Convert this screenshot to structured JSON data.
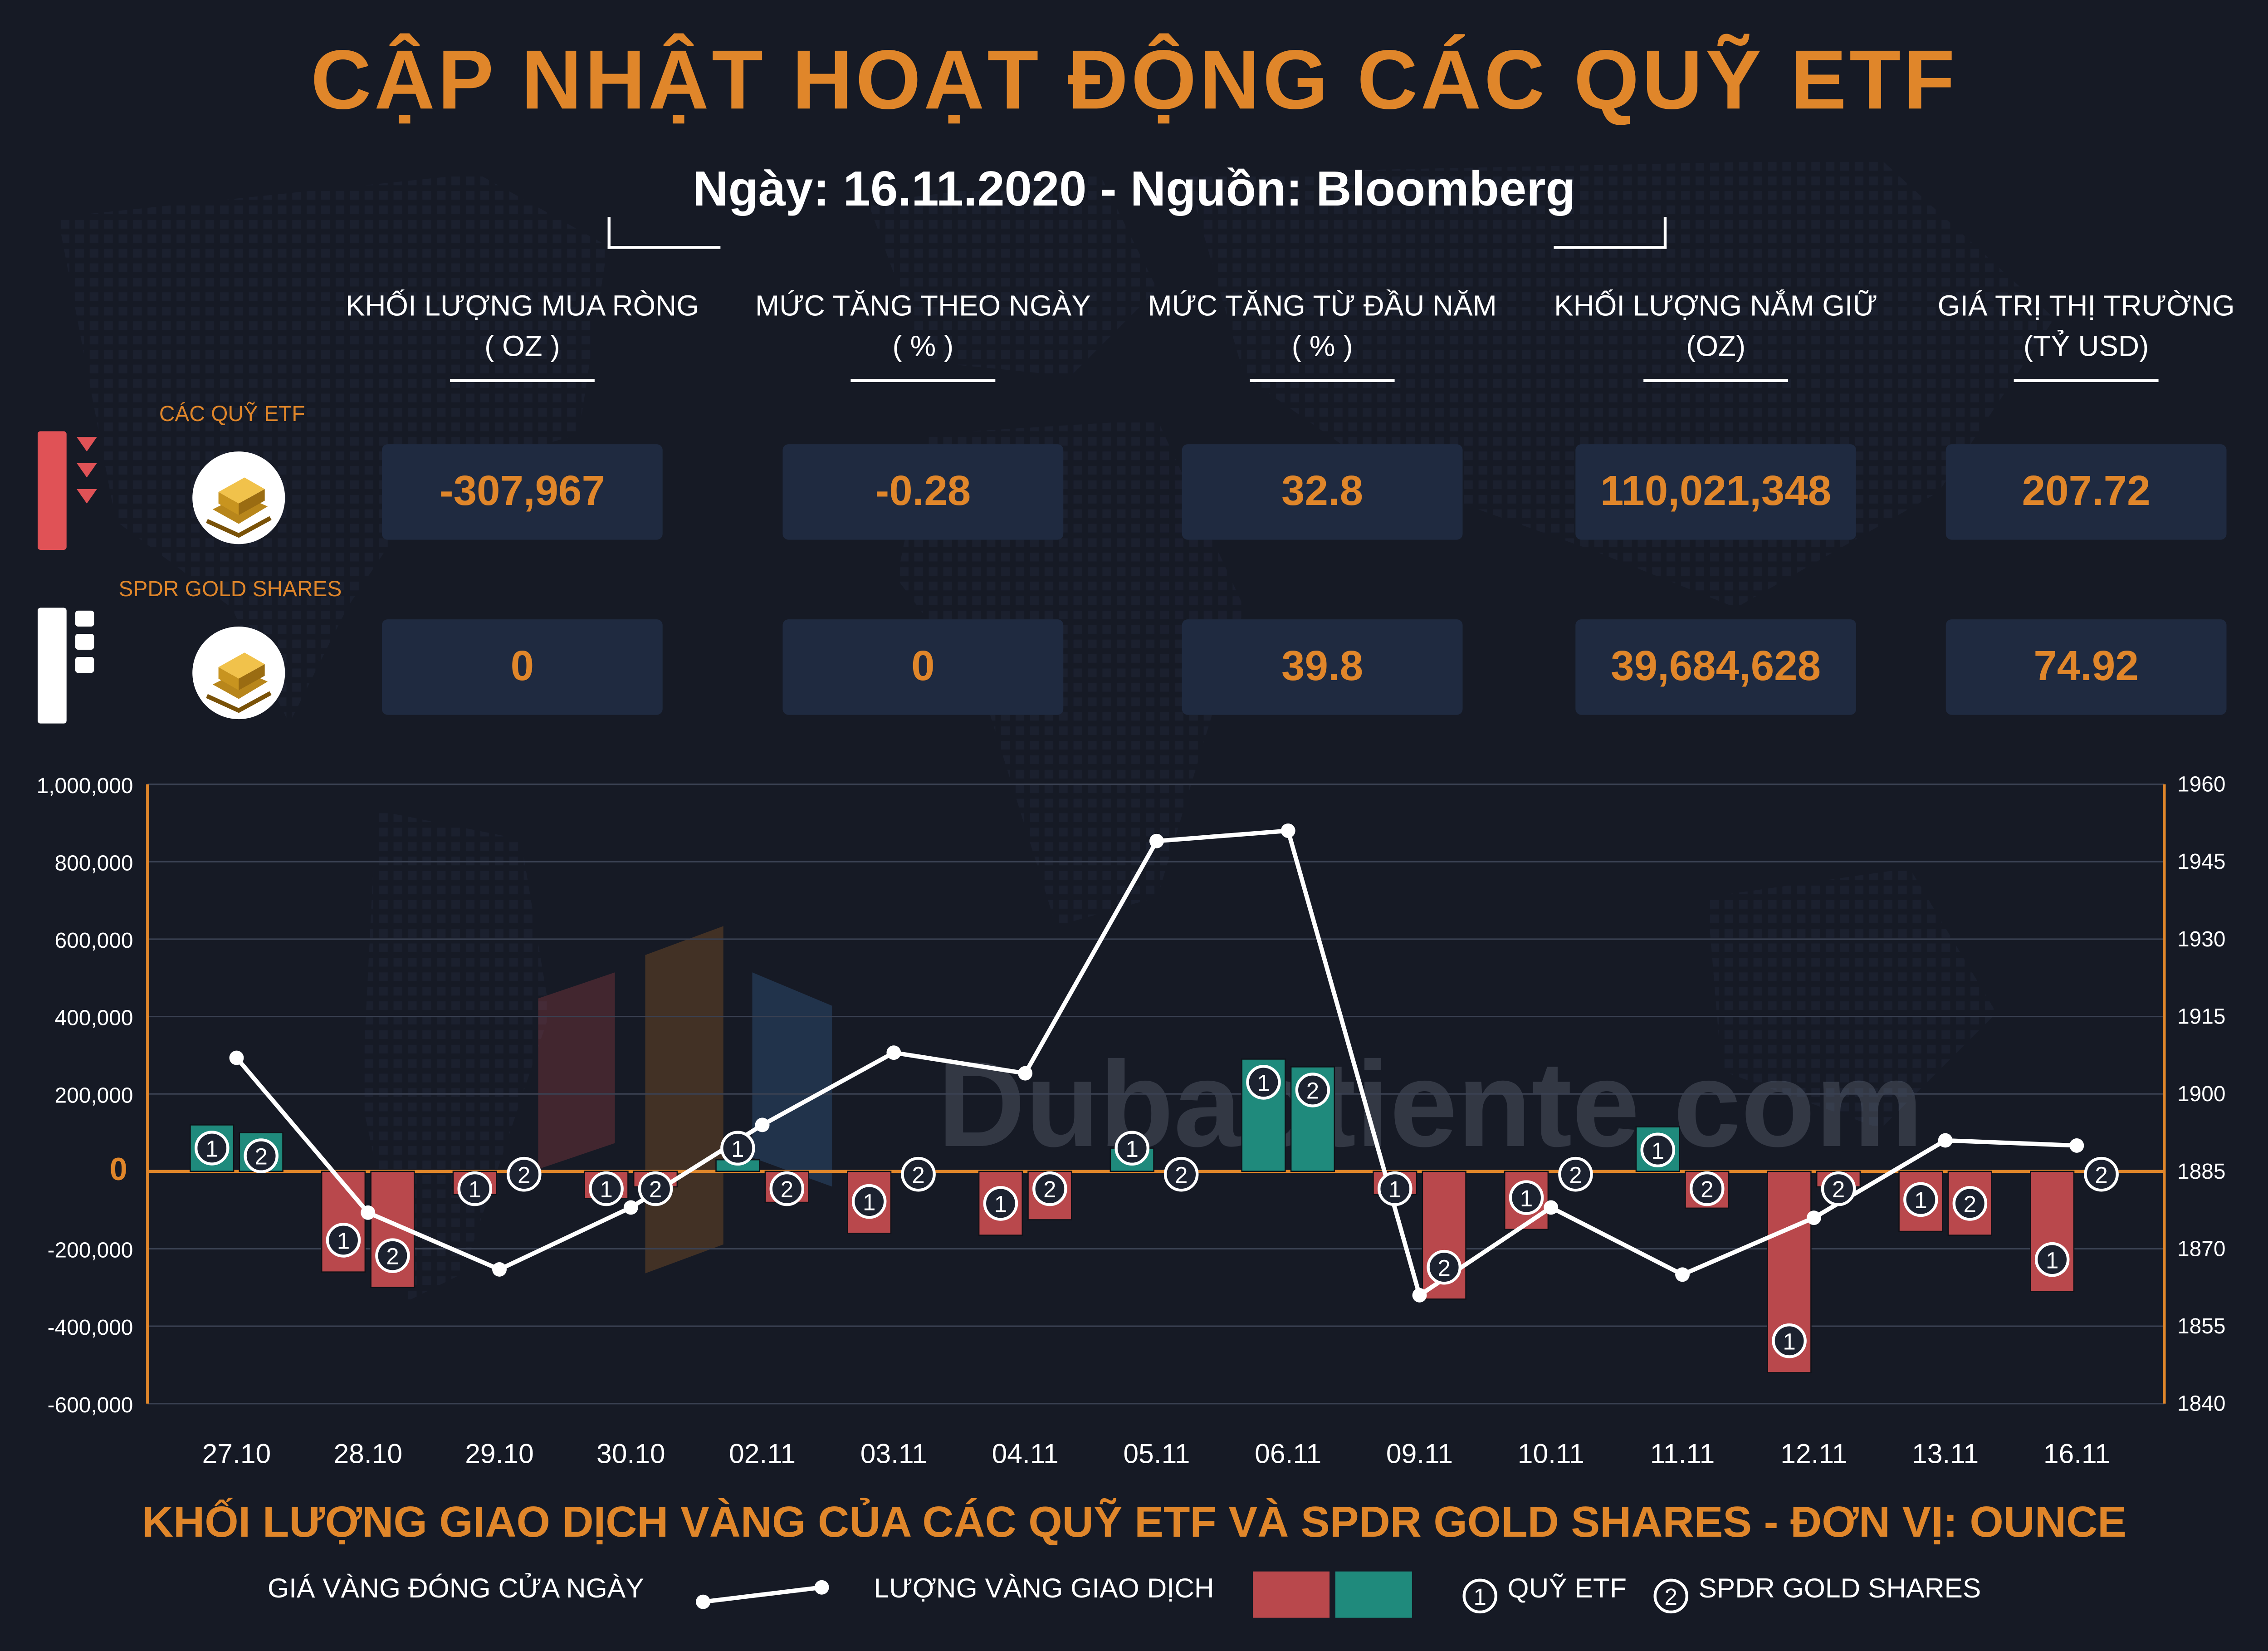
{
  "title": "CẬP NHẬT HOẠT ĐỘNG CÁC QUỸ ETF",
  "subtitle": "Ngày: 16.11.2020 - Nguồn: Bloomberg",
  "columns": [
    {
      "label": "KHỐI LƯỢNG MUA RÒNG",
      "unit": "( OZ )"
    },
    {
      "label": "MỨC TĂNG THEO NGÀY",
      "unit": "( % )"
    },
    {
      "label": "MỨC TĂNG TỪ ĐẦU NĂM",
      "unit": "( % )"
    },
    {
      "label": "KHỐI LƯỢNG NẮM GIỮ",
      "unit": "(OZ)"
    },
    {
      "label": "GIÁ TRỊ THỊ TRƯỜNG",
      "unit": "(TỶ USD)"
    }
  ],
  "rows": [
    {
      "name": "CÁC QUỸ ETF",
      "values": [
        "-307,967",
        "-0.28",
        "32.8",
        "110,021,348",
        "207.72"
      ]
    },
    {
      "name": "SPDR GOLD SHARES",
      "values": [
        "0",
        "0",
        "39.8",
        "39,684,628",
        "74.92"
      ]
    }
  ],
  "watermark": "Dubaotiente.com",
  "colors": {
    "accent": "#e0862a",
    "negative_bar": "#b9484c",
    "positive_bar": "#1f8a7c",
    "line": "#ffffff",
    "background": "#161a25"
  },
  "chart_data": {
    "type": "bar",
    "title": "KHỐI LƯỢNG GIAO DỊCH VÀNG CỦA CÁC QUỸ ETF VÀ SPDR GOLD SHARES - ĐƠN VỊ: OUNCE",
    "categories": [
      "27.10",
      "28.10",
      "29.10",
      "30.10",
      "02.11",
      "03.11",
      "04.11",
      "05.11",
      "06.11",
      "09.11",
      "10.11",
      "11.11",
      "12.11",
      "13.11",
      "16.11"
    ],
    "y_left_ticks": [
      "1,000,000",
      "800,000",
      "600,000",
      "400,000",
      "200,000",
      "0",
      "-200,000",
      "-400,000",
      "-600,000"
    ],
    "y_right_ticks": [
      "1960",
      "1945",
      "1930",
      "1915",
      "1900",
      "1885",
      "1870",
      "1855",
      "1840"
    ],
    "ylim_left": [
      -600000,
      1000000
    ],
    "ylim_right": [
      1840,
      1960
    ],
    "series": [
      {
        "name": "QUỸ ETF",
        "marker": "1",
        "axis": "left",
        "kind": "bar",
        "values": [
          120000,
          -260000,
          -60000,
          -70000,
          30000,
          -160000,
          -165000,
          60000,
          290000,
          -60000,
          -150000,
          115000,
          -520000,
          -155000,
          -310000
        ]
      },
      {
        "name": "SPDR GOLD SHARES",
        "marker": "2",
        "axis": "left",
        "kind": "bar",
        "values": [
          100000,
          -300000,
          0,
          -40000,
          -80000,
          0,
          -125000,
          0,
          270000,
          -330000,
          0,
          -95000,
          -40000,
          -165000,
          0
        ]
      },
      {
        "name": "GIÁ VÀNG ĐÓNG CỬA NGÀY",
        "axis": "right",
        "kind": "line",
        "values": [
          1907,
          1877,
          1866,
          1878,
          1894,
          1908,
          1904,
          1949,
          1951,
          1861,
          1878,
          1865,
          1876,
          1891,
          1890
        ]
      }
    ],
    "legend": {
      "line_label": "GIÁ VÀNG ĐÓNG CỬA NGÀY",
      "bars_label": "LƯỢNG VÀNG GIAO DỊCH",
      "marker1_label": "QUỸ ETF",
      "marker2_label": "SPDR GOLD SHARES"
    },
    "zero_label": "0",
    "legend_position": "bottom"
  }
}
